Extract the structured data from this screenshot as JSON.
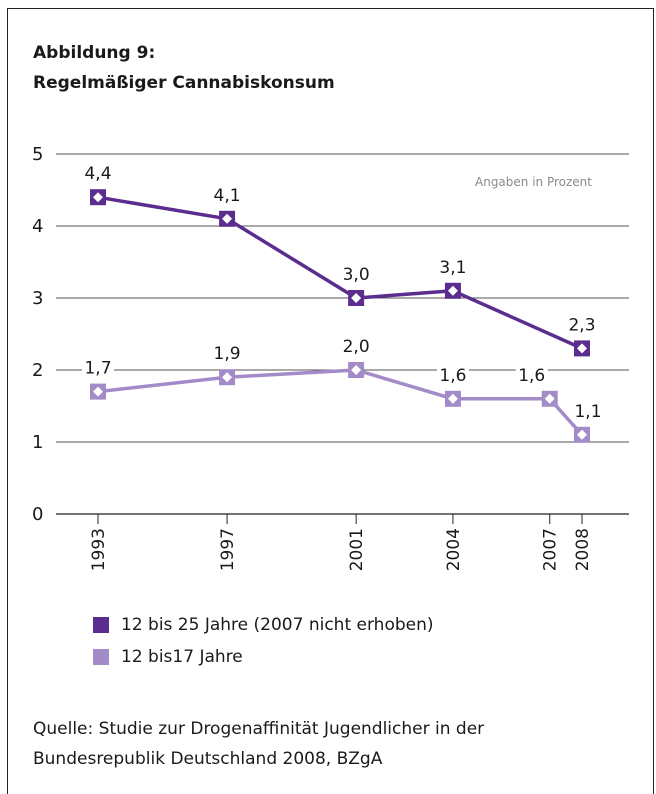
{
  "figure": {
    "label": "Abbildung 9:",
    "title": "Regelmäßiger Cannabiskonsum",
    "note": "Angaben in Prozent",
    "source_line1": "Quelle: Studie zur Drogenaffinität Jugendlicher in der",
    "source_line2": "Bundesrepublik Deutschland 2008, BZgA"
  },
  "legend": [
    {
      "label": "12 bis 25 Jahre (2007 nicht erhoben)",
      "color": "#5b2d8e"
    },
    {
      "label": "12 bis17 Jahre",
      "color": "#a38bc7"
    }
  ],
  "chart_data": {
    "type": "line",
    "title": "Regelmäßiger Cannabiskonsum",
    "xlabel": "",
    "ylabel": "",
    "ylim": [
      0,
      5
    ],
    "yticks": [
      "0",
      "1",
      "2",
      "3",
      "4",
      "5"
    ],
    "xticks": [
      "1993",
      "1997",
      "2001",
      "2004",
      "2007",
      "2008"
    ],
    "grid": true,
    "legend_position": "bottom",
    "series": [
      {
        "name": "12 bis 25 Jahre (2007 nicht erhoben)",
        "color": "#5b2d8e",
        "points": [
          {
            "x": 1993,
            "y": 4.4,
            "label": "4,4"
          },
          {
            "x": 1997,
            "y": 4.1,
            "label": "4,1"
          },
          {
            "x": 2001,
            "y": 3.0,
            "label": "3,0"
          },
          {
            "x": 2004,
            "y": 3.1,
            "label": "3,1"
          },
          {
            "x": 2008,
            "y": 2.3,
            "label": "2,3"
          }
        ]
      },
      {
        "name": "12 bis17 Jahre",
        "color": "#a38bc7",
        "points": [
          {
            "x": 1993,
            "y": 1.7,
            "label": "1,7"
          },
          {
            "x": 1997,
            "y": 1.9,
            "label": "1,9"
          },
          {
            "x": 2001,
            "y": 2.0,
            "label": "2,0"
          },
          {
            "x": 2004,
            "y": 1.6,
            "label": "1,6"
          },
          {
            "x": 2007,
            "y": 1.6,
            "label": "1,6"
          },
          {
            "x": 2008,
            "y": 1.1,
            "label": "1,1"
          }
        ]
      }
    ]
  }
}
